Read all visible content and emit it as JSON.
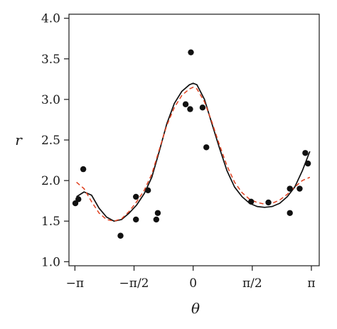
{
  "chart_data": {
    "type": "scatter",
    "title": "",
    "xlabel": "θ",
    "ylabel": "r",
    "xlim": [
      -3.3,
      3.35
    ],
    "ylim": [
      0.95,
      4.05
    ],
    "grid": false,
    "legend": "none",
    "x_ticks": [
      {
        "value": -3.14159,
        "label": "−π"
      },
      {
        "value": -1.5708,
        "label": "−π/2"
      },
      {
        "value": 0,
        "label": "0"
      },
      {
        "value": 1.5708,
        "label": "π/2"
      },
      {
        "value": 3.14159,
        "label": "π"
      }
    ],
    "y_ticks": [
      {
        "value": 1.0,
        "label": "1.0"
      },
      {
        "value": 1.5,
        "label": "1.5"
      },
      {
        "value": 2.0,
        "label": "2.0"
      },
      {
        "value": 2.5,
        "label": "2.5"
      },
      {
        "value": 3.0,
        "label": "3.0"
      },
      {
        "value": 3.5,
        "label": "3.5"
      },
      {
        "value": 4.0,
        "label": "4.0"
      }
    ],
    "series": [
      {
        "kind": "points",
        "color": "#111111",
        "x": [
          -3.13,
          -3.05,
          -2.92,
          -0.98,
          -1.93,
          -1.52,
          -1.52,
          -1.2,
          -0.94,
          -0.2,
          -0.08,
          -0.06,
          0.25,
          0.35,
          1.54,
          2.0,
          2.57,
          2.57,
          2.83,
          2.98,
          3.05
        ],
        "y": [
          1.72,
          1.77,
          2.14,
          1.52,
          1.32,
          1.8,
          1.52,
          1.88,
          1.6,
          2.94,
          2.88,
          3.58,
          2.9,
          2.41,
          1.74,
          1.73,
          1.9,
          1.6,
          1.9,
          2.34,
          2.21
        ]
      },
      {
        "kind": "line",
        "style": "solid",
        "color": "#111111",
        "x": [
          -3.1,
          -2.9,
          -2.7,
          -2.5,
          -2.3,
          -2.1,
          -1.9,
          -1.7,
          -1.5,
          -1.3,
          -1.1,
          -0.9,
          -0.7,
          -0.5,
          -0.3,
          -0.1,
          0.0,
          0.1,
          0.3,
          0.5,
          0.7,
          0.9,
          1.1,
          1.3,
          1.5,
          1.7,
          1.9,
          2.1,
          2.3,
          2.5,
          2.7,
          2.9,
          3.1
        ],
        "y": [
          1.8,
          1.86,
          1.82,
          1.66,
          1.55,
          1.5,
          1.52,
          1.6,
          1.7,
          1.84,
          2.04,
          2.36,
          2.7,
          2.95,
          3.1,
          3.18,
          3.2,
          3.18,
          3.0,
          2.7,
          2.4,
          2.12,
          1.92,
          1.8,
          1.72,
          1.68,
          1.67,
          1.68,
          1.72,
          1.8,
          1.92,
          2.12,
          2.36
        ]
      },
      {
        "kind": "line",
        "style": "dashed",
        "color": "#e0401f",
        "x": [
          -3.1,
          -2.9,
          -2.7,
          -2.5,
          -2.3,
          -2.1,
          -1.9,
          -1.7,
          -1.5,
          -1.3,
          -1.1,
          -0.9,
          -0.7,
          -0.5,
          -0.3,
          -0.1,
          0.0,
          0.1,
          0.3,
          0.5,
          0.7,
          0.9,
          1.1,
          1.3,
          1.5,
          1.7,
          1.9,
          2.1,
          2.3,
          2.5,
          2.7,
          2.9,
          3.1
        ],
        "y": [
          1.98,
          1.9,
          1.74,
          1.6,
          1.52,
          1.5,
          1.53,
          1.62,
          1.74,
          1.88,
          2.08,
          2.38,
          2.68,
          2.9,
          3.05,
          3.13,
          3.15,
          3.13,
          2.97,
          2.72,
          2.44,
          2.18,
          1.98,
          1.85,
          1.77,
          1.73,
          1.71,
          1.72,
          1.76,
          1.83,
          1.92,
          2.0,
          2.04
        ]
      }
    ]
  }
}
